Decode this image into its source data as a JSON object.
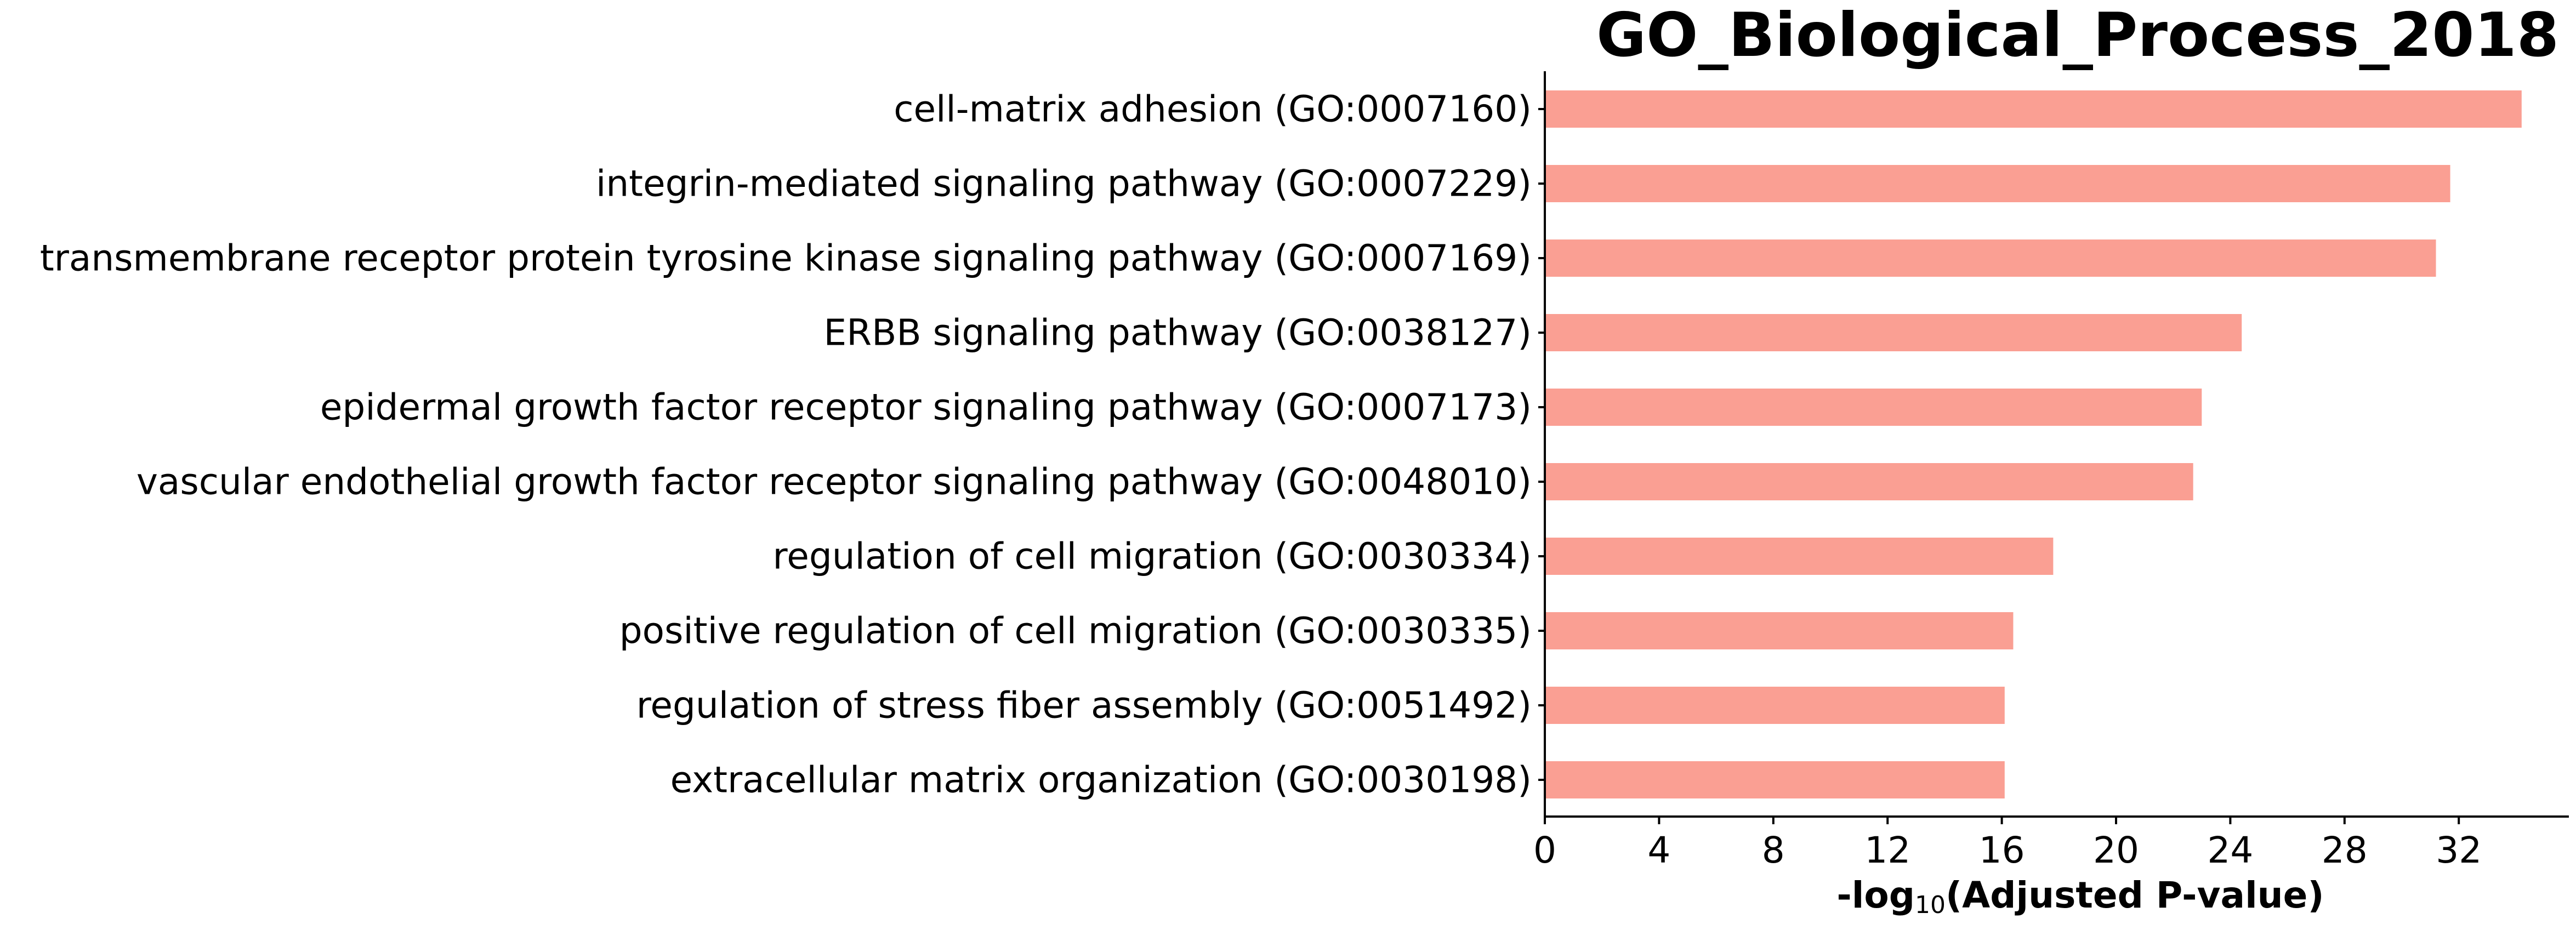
{
  "chart_data": {
    "type": "bar",
    "orientation": "horizontal",
    "title": "GO_Biological_Process_2018",
    "xlabel": {
      "prefix": "-log",
      "subscript": "10",
      "suffix": "(Adjusted P-value)"
    },
    "ylabel": "",
    "xlim": [
      0,
      35.8
    ],
    "xticks": [
      0,
      4,
      8,
      12,
      16,
      20,
      24,
      28,
      32
    ],
    "grid": false,
    "bar_color": "#fa9f93",
    "categories": [
      "cell-matrix adhesion (GO:0007160)",
      "integrin-mediated signaling pathway (GO:0007229)",
      "transmembrane receptor protein tyrosine kinase signaling pathway (GO:0007169)",
      "ERBB signaling pathway (GO:0038127)",
      "epidermal growth factor receptor signaling pathway (GO:0007173)",
      "vascular endothelial growth factor receptor signaling pathway (GO:0048010)",
      "regulation of cell migration (GO:0030334)",
      "positive regulation of cell migration (GO:0030335)",
      "regulation of stress fiber assembly (GO:0051492)",
      "extracellular matrix organization (GO:0030198)"
    ],
    "values": [
      34.2,
      31.7,
      31.2,
      24.4,
      23.0,
      22.7,
      17.8,
      16.4,
      16.1,
      16.1
    ]
  }
}
